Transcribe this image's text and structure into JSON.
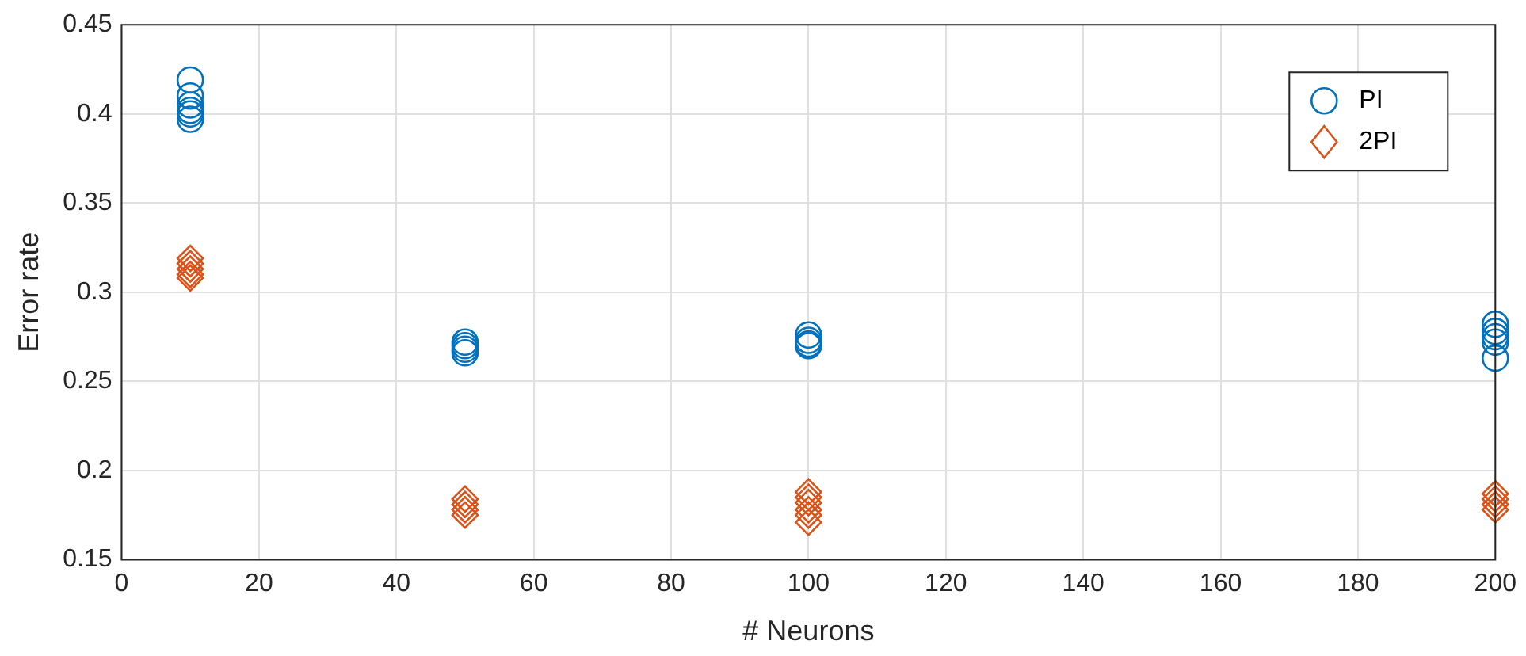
{
  "chart_data": {
    "type": "scatter",
    "xlabel": "# Neurons",
    "ylabel": "Error rate",
    "xlim": [
      0,
      200
    ],
    "xticks": [
      0,
      20,
      40,
      60,
      80,
      100,
      120,
      140,
      160,
      180,
      200
    ],
    "ylim": [
      0.15,
      0.45
    ],
    "yticks": [
      0.15,
      0.2,
      0.25,
      0.3,
      0.35,
      0.4,
      0.45
    ],
    "grid": true,
    "legend": "top right",
    "series": [
      {
        "name": "PI",
        "color": "#0072bd",
        "marker": "circle",
        "x": [
          10,
          10,
          10,
          10,
          10,
          10,
          50,
          50,
          50,
          50,
          100,
          100,
          100,
          100,
          200,
          200,
          200,
          200,
          200
        ],
        "values": [
          0.419,
          0.41,
          0.405,
          0.402,
          0.4,
          0.397,
          0.272,
          0.27,
          0.268,
          0.266,
          0.276,
          0.273,
          0.271,
          0.27,
          0.263,
          0.272,
          0.275,
          0.278,
          0.282
        ]
      },
      {
        "name": "2PI",
        "color": "#d95319",
        "marker": "diamond",
        "x": [
          10,
          10,
          10,
          10,
          10,
          50,
          50,
          50,
          50,
          100,
          100,
          100,
          100,
          100,
          100,
          200,
          200,
          200,
          200
        ],
        "values": [
          0.319,
          0.316,
          0.313,
          0.31,
          0.308,
          0.184,
          0.181,
          0.178,
          0.175,
          0.188,
          0.185,
          0.182,
          0.178,
          0.175,
          0.171,
          0.178,
          0.181,
          0.184,
          0.187
        ]
      }
    ]
  }
}
